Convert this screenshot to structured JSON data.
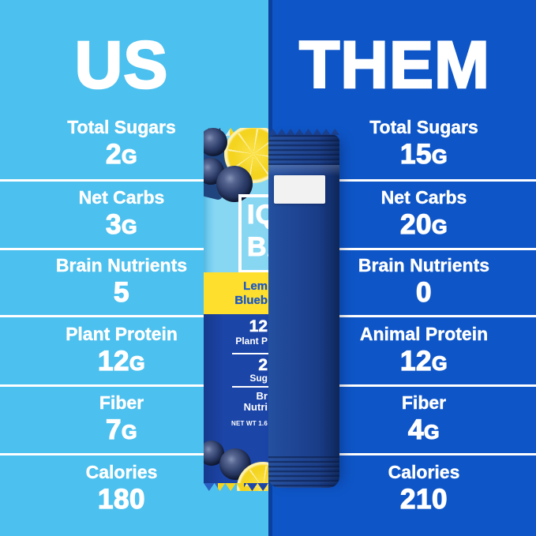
{
  "panels": {
    "left": {
      "title": "US",
      "rows": [
        {
          "label": "Total Sugars",
          "value": "2",
          "unit": "G"
        },
        {
          "label": "Net Carbs",
          "value": "3",
          "unit": "G"
        },
        {
          "label": "Brain Nutrients",
          "value": "5",
          "unit": ""
        },
        {
          "label": "Plant Protein",
          "value": "12",
          "unit": "G"
        },
        {
          "label": "Fiber",
          "value": "7",
          "unit": "G"
        },
        {
          "label": "Calories",
          "value": "180",
          "unit": ""
        }
      ]
    },
    "right": {
      "title": "THEM",
      "rows": [
        {
          "label": "Total Sugars",
          "value": "15",
          "unit": "G"
        },
        {
          "label": "Net Carbs",
          "value": "20",
          "unit": "G"
        },
        {
          "label": "Brain Nutrients",
          "value": "0",
          "unit": ""
        },
        {
          "label": "Animal Protein",
          "value": "12",
          "unit": "G"
        },
        {
          "label": "Fiber",
          "value": "4",
          "unit": "G"
        },
        {
          "label": "Calories",
          "value": "210",
          "unit": ""
        }
      ]
    }
  },
  "product_bar": {
    "left_wrapper": {
      "logo_line1": "IQ",
      "logo_line2": "BA",
      "flavor_line1": "Lem",
      "flavor_line2": "Blueb",
      "stat1_value": "12",
      "stat1_label": "Plant P",
      "stat2_value": "2",
      "stat2_label": "Sug",
      "stat3_line1": "Br",
      "stat3_line2": "Nutri",
      "net_weight": "NET WT 1.6"
    }
  },
  "colors": {
    "left_bg": "#4CC0EE",
    "right_bg": "#0E55C7",
    "text": "#FFFFFF",
    "iqbar_wrapper_blue": "#87D7F3",
    "iqbar_navy": "#1C45A8",
    "flavor_band_yellow": "#FFDF2E",
    "flavor_text_blue": "#1B57C5",
    "plain_bar_navy": "#1D4391",
    "lemon_yellow": "#F4D41F"
  }
}
